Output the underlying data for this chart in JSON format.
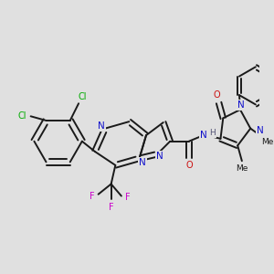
{
  "background_color": "#e0e0e0",
  "figure_size": [
    3.0,
    3.0
  ],
  "dpi": 100,
  "bond_color": "#1a1a1a",
  "bond_lw": 1.4,
  "colors": {
    "C": "#1a1a1a",
    "N": "#1010cc",
    "O": "#cc1010",
    "F": "#cc00cc",
    "Cl": "#00aa00",
    "H": "#555577"
  },
  "fs": 7.0
}
